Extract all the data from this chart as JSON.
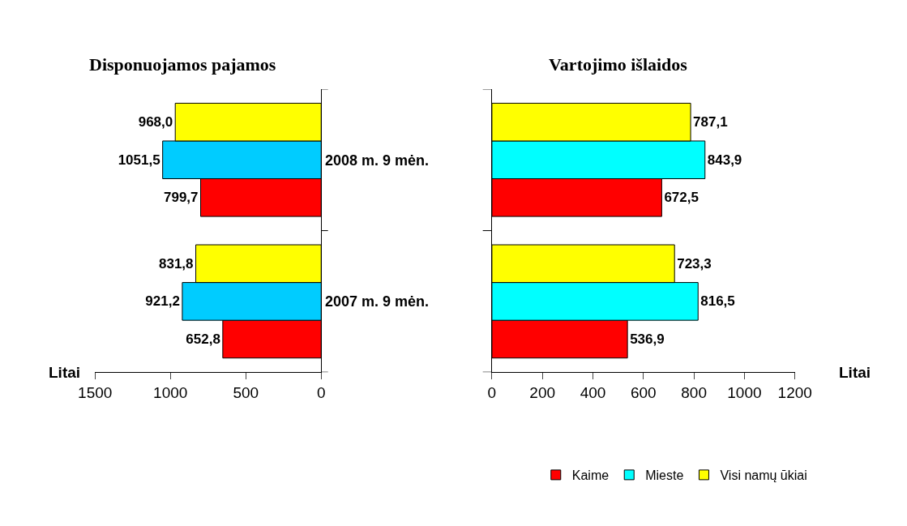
{
  "chart_data": [
    {
      "type": "bar",
      "orientation": "horizontal",
      "title": "Disponuojamos pajamos",
      "xlabel": "Litai",
      "categories": [
        "2008 m. 9 mėn.",
        "2007 m. 9 mėn."
      ],
      "xlim": [
        1500,
        0
      ],
      "xticks": [
        1500,
        1000,
        500,
        0
      ],
      "series": [
        {
          "color": "#ff0000",
          "values": [
            799.7,
            652.8
          ],
          "value_labels": [
            "799,7",
            "652,8"
          ]
        },
        {
          "color": "#00ccff",
          "values": [
            1051.5,
            921.2
          ],
          "value_labels": [
            "1051,5",
            "921,2"
          ]
        },
        {
          "color": "#ffff00",
          "values": [
            968.0,
            831.8
          ],
          "value_labels": [
            "968,0",
            "831,8"
          ]
        }
      ]
    },
    {
      "type": "bar",
      "orientation": "horizontal",
      "title": "Vartojimo išlaidos",
      "xlabel": "Litai",
      "categories": [
        null,
        null
      ],
      "xlim": [
        0,
        1200
      ],
      "xticks": [
        0,
        200,
        400,
        600,
        800,
        1000,
        1200
      ],
      "legend": "bottom",
      "tick_labels": "x",
      "series": [
        {
          "name": "Kaime",
          "color": "#ff0000",
          "values": [
            672.5,
            536.9
          ],
          "value_labels": [
            "672,5",
            "536,9"
          ]
        },
        {
          "name": "Mieste",
          "color": "#00ffff",
          "values": [
            843.9,
            816.5
          ],
          "value_labels": [
            "843,9",
            "816,5"
          ]
        },
        {
          "name": "Visi namų ūkiai",
          "color": "#ffff00",
          "values": [
            787.1,
            723.3
          ],
          "value_labels": [
            "787,1",
            "723,3"
          ]
        }
      ]
    }
  ]
}
